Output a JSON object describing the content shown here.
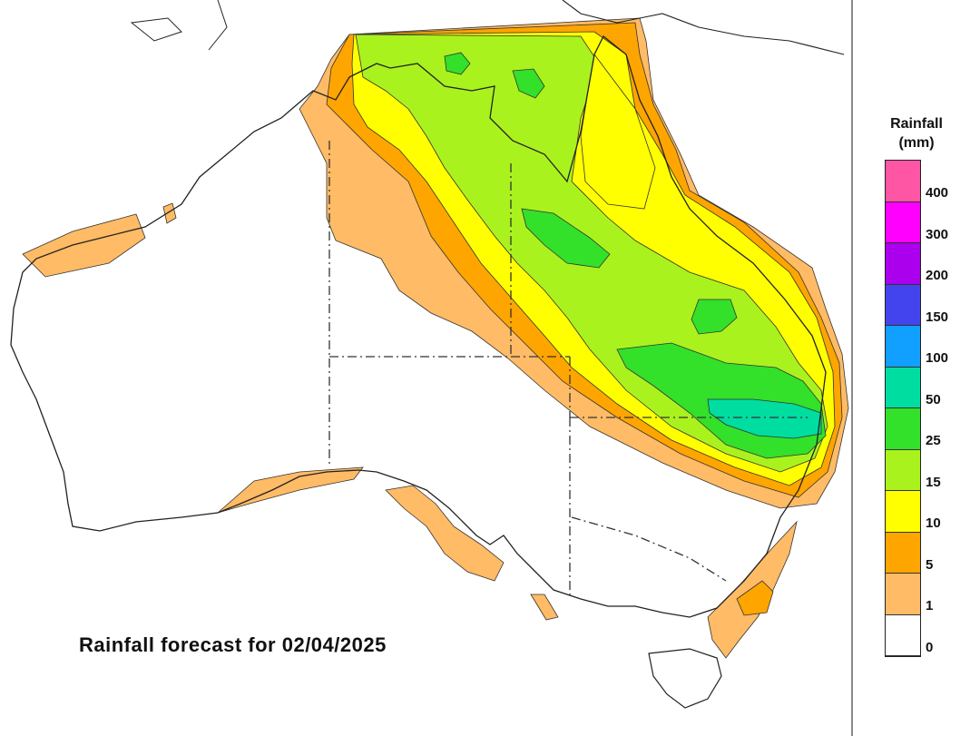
{
  "caption": "Rainfall forecast for 02/04/2025",
  "legend": {
    "title_line1": "Rainfall",
    "title_line2": "(mm)",
    "bins": [
      {
        "label": "400",
        "color": "#ff55a5"
      },
      {
        "label": "300",
        "color": "#ff00ff"
      },
      {
        "label": "200",
        "color": "#aa00ee"
      },
      {
        "label": "150",
        "color": "#4444ee"
      },
      {
        "label": "100",
        "color": "#11a0ff"
      },
      {
        "label": "50",
        "color": "#00dda0"
      },
      {
        "label": "25",
        "color": "#33e02a"
      },
      {
        "label": "15",
        "color": "#aaf21e"
      },
      {
        "label": "10",
        "color": "#ffff00"
      },
      {
        "label": "5",
        "color": "#ffa500"
      },
      {
        "label": "1",
        "color": "#ffbb66"
      },
      {
        "label": "0",
        "color": "#ffffff"
      }
    ]
  },
  "map": {
    "land_color": "#ffffff",
    "coast_color": "#222222",
    "colors": {
      "light_orange": "#ffbb66",
      "orange": "#ffa500",
      "yellow": "#ffff00",
      "light_green": "#aaf21e",
      "green": "#33e02a",
      "teal": "#00dda0"
    }
  }
}
